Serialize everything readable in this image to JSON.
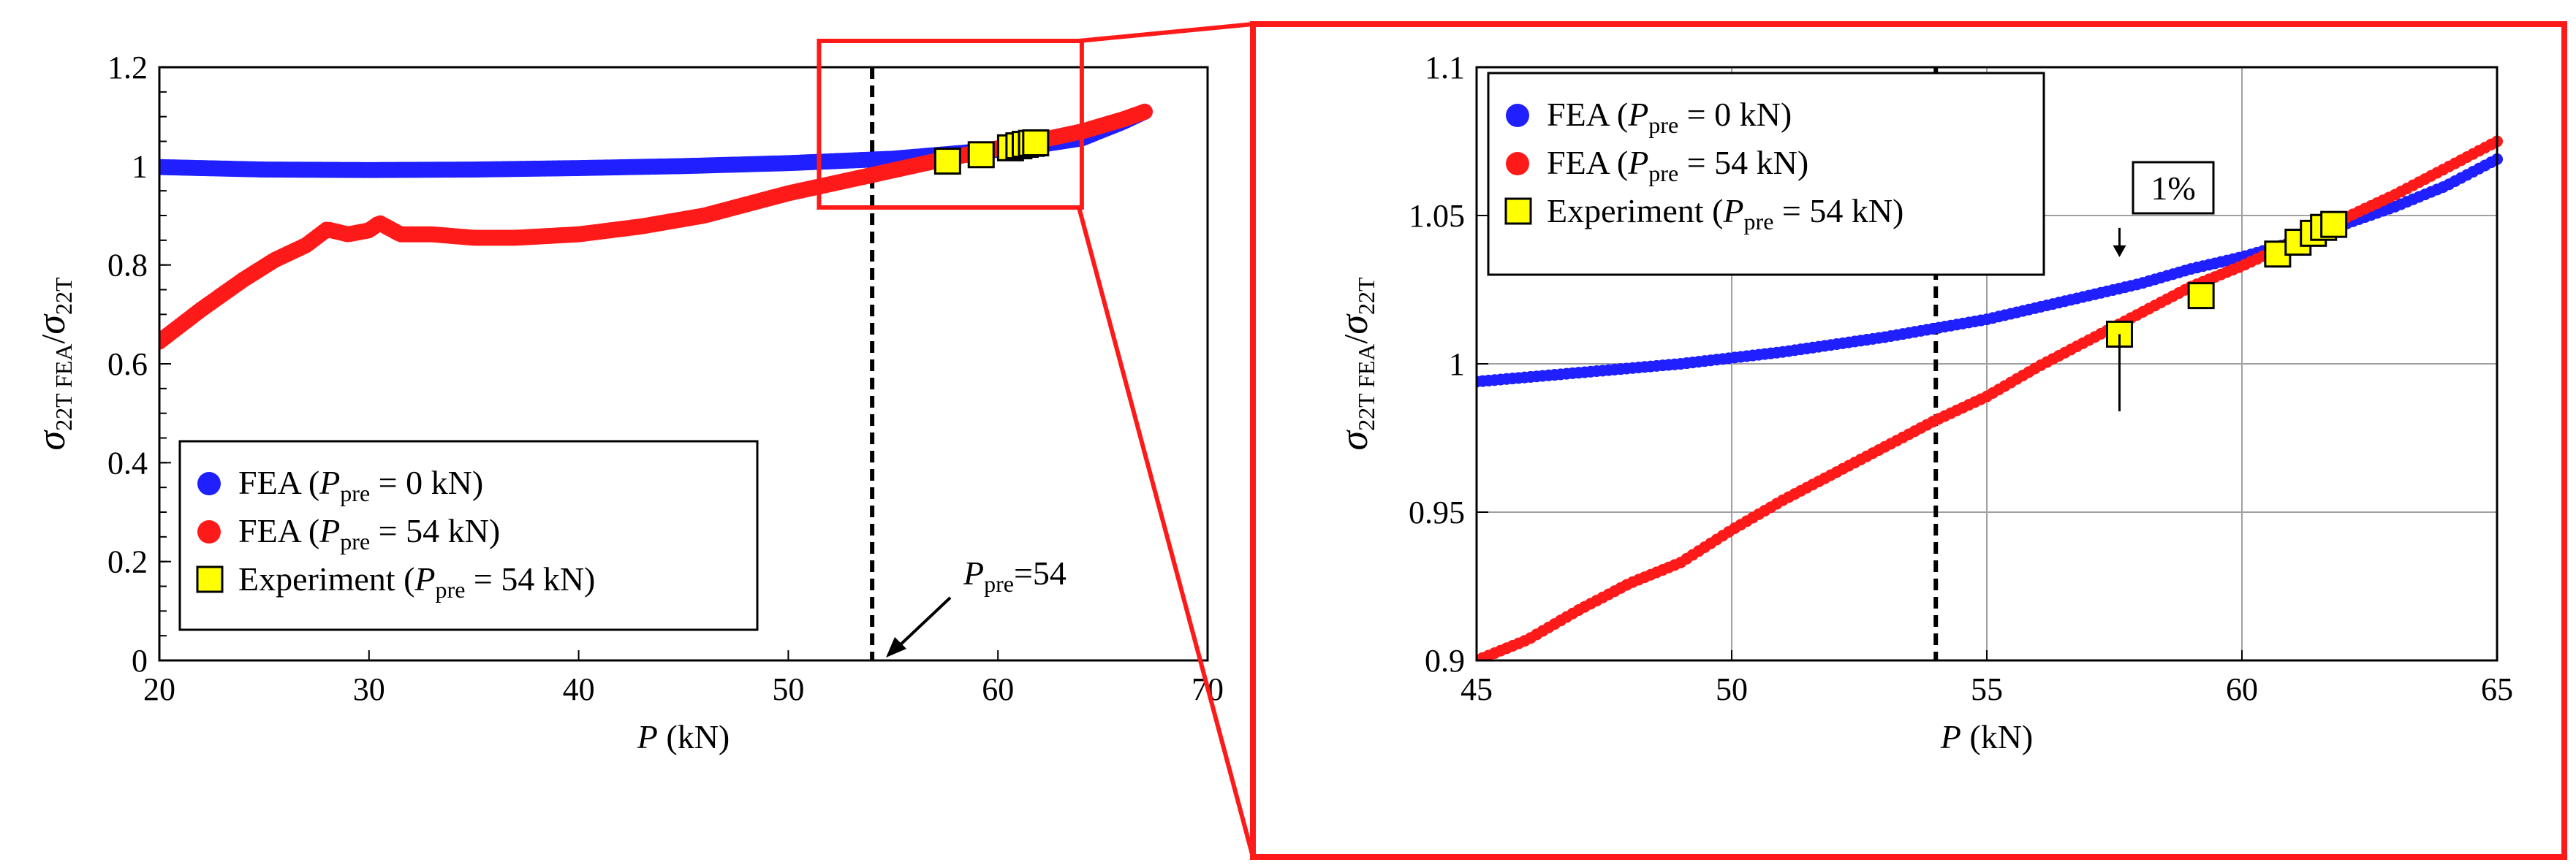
{
  "chart_data": [
    {
      "type": "scatter",
      "panel": "main",
      "xlabel": "P (kN)",
      "ylabel": "σ22T FEA/σ22T",
      "xlim": [
        20,
        70
      ],
      "ylim": [
        0,
        1.2
      ],
      "xticks": [
        "20",
        "30",
        "40",
        "50",
        "60",
        "70"
      ],
      "yticks": [
        "0",
        "0.2",
        "0.4",
        "0.6",
        "0.8",
        "1",
        "1.2"
      ],
      "grid": false,
      "legend": [
        "FEA (Ppre = 0 kN)",
        "FEA (Ppre = 54 kN)",
        "Experiment (Ppre = 54 kN)"
      ],
      "legend_position": "bottom-left",
      "series": [
        {
          "name": "FEA (Ppre = 0 kN)",
          "color": "#1f1fff",
          "marker": "circle",
          "x": [
            20,
            25,
            30,
            35,
            40,
            45,
            50,
            55,
            60,
            62,
            64,
            66,
            67
          ],
          "y": [
            0.998,
            0.993,
            0.992,
            0.993,
            0.996,
            1.0,
            1.006,
            1.015,
            1.033,
            1.043,
            1.056,
            1.09,
            1.11
          ]
        },
        {
          "name": "FEA (Ppre = 54 kN)",
          "color": "#ff1a1a",
          "marker": "circle",
          "x": [
            20,
            22,
            24,
            25.5,
            27,
            28,
            29,
            30,
            30.5,
            31.5,
            33,
            35,
            37,
            40,
            43,
            46,
            50,
            54,
            57,
            60,
            62,
            64,
            66,
            67
          ],
          "y": [
            0.645,
            0.71,
            0.77,
            0.81,
            0.84,
            0.872,
            0.862,
            0.87,
            0.885,
            0.862,
            0.862,
            0.855,
            0.855,
            0.862,
            0.878,
            0.9,
            0.945,
            0.982,
            1.01,
            1.036,
            1.052,
            1.07,
            1.095,
            1.11
          ]
        },
        {
          "name": "Experiment (Ppre = 54 kN)",
          "color": "#ffff00",
          "marker": "square",
          "x": [
            57.6,
            59.2,
            60.6,
            61.0,
            61.3,
            61.6,
            61.8
          ],
          "y": [
            1.01,
            1.023,
            1.037,
            1.041,
            1.044,
            1.046,
            1.047
          ]
        }
      ],
      "vline": {
        "x": 54,
        "style": "dashed"
      },
      "annotation": {
        "text": "Ppre=54",
        "base": "P",
        "sub": "pre",
        "tail": "=54"
      },
      "zoom_box": {
        "x": [
          53,
          64
        ],
        "y": [
          0.92,
          1.2
        ]
      }
    },
    {
      "type": "scatter",
      "panel": "zoom",
      "xlabel": "P (kN)",
      "ylabel": "σ22T FEA/σ22T",
      "xlim": [
        45,
        65
      ],
      "ylim": [
        0.9,
        1.1
      ],
      "xticks": [
        "45",
        "50",
        "55",
        "60",
        "65"
      ],
      "yticks": [
        "0.9",
        "0.95",
        "1",
        "1.05",
        "1.1"
      ],
      "grid": true,
      "legend": [
        "FEA (Ppre = 0 kN)",
        "FEA (Ppre = 54 kN)",
        "Experiment (Ppre = 54 kN)"
      ],
      "legend_position": "top-left",
      "series": [
        {
          "name": "FEA (Ppre = 0 kN)",
          "color": "#1f1fff",
          "marker": "circle",
          "x": [
            45,
            47,
            49,
            51,
            53,
            55,
            56,
            57,
            58,
            59,
            60,
            61,
            62,
            63,
            64,
            65
          ],
          "y": [
            0.994,
            0.997,
            1.0,
            1.004,
            1.009,
            1.015,
            1.019,
            1.023,
            1.027,
            1.032,
            1.036,
            1.041,
            1.047,
            1.053,
            1.06,
            1.069
          ]
        },
        {
          "name": "FEA (Ppre = 54 kN)",
          "color": "#ff1a1a",
          "marker": "circle",
          "x": [
            45,
            46,
            47,
            48,
            49,
            50,
            51,
            52,
            53,
            54,
            55,
            56,
            57,
            58,
            59,
            60,
            61,
            62,
            63,
            64,
            65
          ],
          "y": [
            0.9,
            0.907,
            0.917,
            0.926,
            0.933,
            0.944,
            0.954,
            0.963,
            0.972,
            0.981,
            0.989,
            0.999,
            1.008,
            1.017,
            1.026,
            1.033,
            1.041,
            1.049,
            1.057,
            1.066,
            1.075
          ]
        },
        {
          "name": "Experiment (Ppre = 54 kN)",
          "color": "#ffff00",
          "marker": "square",
          "x": [
            57.6,
            59.2,
            60.7,
            61.1,
            61.4,
            61.6,
            61.8
          ],
          "y": [
            1.01,
            1.023,
            1.037,
            1.041,
            1.044,
            1.046,
            1.047
          ]
        }
      ],
      "vline": {
        "x": 54,
        "style": "dashed"
      },
      "error_bar": {
        "x": 57.6,
        "y_low": 0.984,
        "y_high": 1.036
      },
      "annotation": {
        "text": "1%",
        "x": 58.2,
        "y": 1.053
      }
    }
  ]
}
